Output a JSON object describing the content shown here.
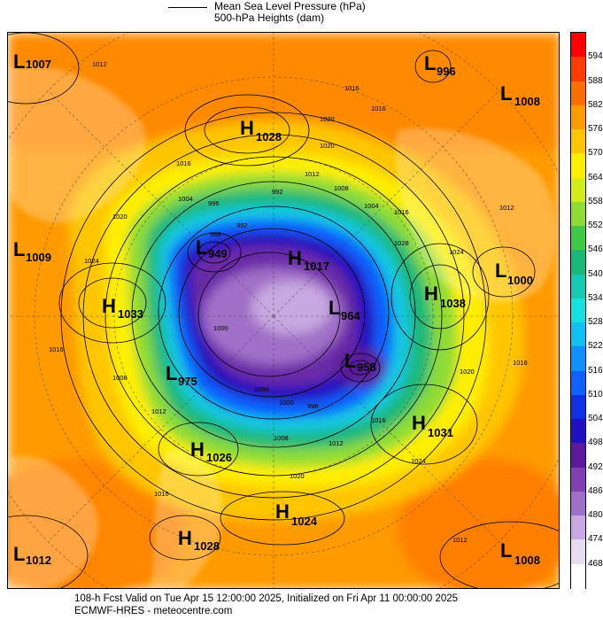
{
  "header": {
    "line1": "Mean Sea Level Pressure (hPa)",
    "line2": "500-hPa Heights (dam)"
  },
  "colorbar": {
    "labels": [
      "594",
      "588",
      "582",
      "576",
      "570",
      "564",
      "558",
      "552",
      "546",
      "540",
      "534",
      "528",
      "522",
      "516",
      "510",
      "504",
      "498",
      "492",
      "486",
      "480",
      "474",
      "468"
    ],
    "colors": [
      "#ff0000",
      "#ff3c00",
      "#ff6e00",
      "#ff9a00",
      "#ffc600",
      "#ffee00",
      "#d4ec1a",
      "#8fdc34",
      "#40c846",
      "#1ab878",
      "#14c8b4",
      "#14e0e0",
      "#10c0f0",
      "#1090ff",
      "#1060ff",
      "#1030e8",
      "#2010c0",
      "#5a1a9a",
      "#8040b0",
      "#a070c8",
      "#c8a8e0",
      "#e8dcf0",
      "#ffffff"
    ]
  },
  "centers": [
    {
      "type": "L",
      "value": "1007"
    },
    {
      "type": "H",
      "value": "1028"
    },
    {
      "type": "L",
      "value": "996"
    },
    {
      "type": "L",
      "value": "1008"
    },
    {
      "type": "L",
      "value": "1009"
    },
    {
      "type": "L",
      "value": "949"
    },
    {
      "type": "H",
      "value": "1017"
    },
    {
      "type": "H",
      "value": "1033"
    },
    {
      "type": "L",
      "value": "964"
    },
    {
      "type": "H",
      "value": "1038"
    },
    {
      "type": "L",
      "value": "1000"
    },
    {
      "type": "L",
      "value": "975"
    },
    {
      "type": "L",
      "value": "958"
    },
    {
      "type": "H",
      "value": "1026"
    },
    {
      "type": "H",
      "value": "1031"
    },
    {
      "type": "H",
      "value": "1024"
    },
    {
      "type": "H",
      "value": "1028"
    },
    {
      "type": "L",
      "value": "1012"
    },
    {
      "type": "L",
      "value": "1008"
    }
  ],
  "contour_labels": [
    "1012",
    "1016",
    "1020",
    "1020",
    "1012",
    "1016",
    "1004",
    "996",
    "992",
    "1008",
    "1004",
    "1016",
    "1028",
    "1024",
    "1024",
    "1020",
    "1012",
    "1008",
    "1016",
    "1016",
    "1012",
    "1004",
    "1000",
    "996",
    "1008",
    "1024",
    "1016",
    "1012",
    "1016",
    "1020",
    "1012",
    "988",
    "992",
    "1000",
    "1020",
    "1016"
  ],
  "footer": {
    "line1": "108-h Fcst Valid on Tue Apr 15 12:00:00 2025, Initialized on Fri Apr 11 00:00:00 2025",
    "line2": "ECMWF-HRES  - meteocentre.com"
  }
}
